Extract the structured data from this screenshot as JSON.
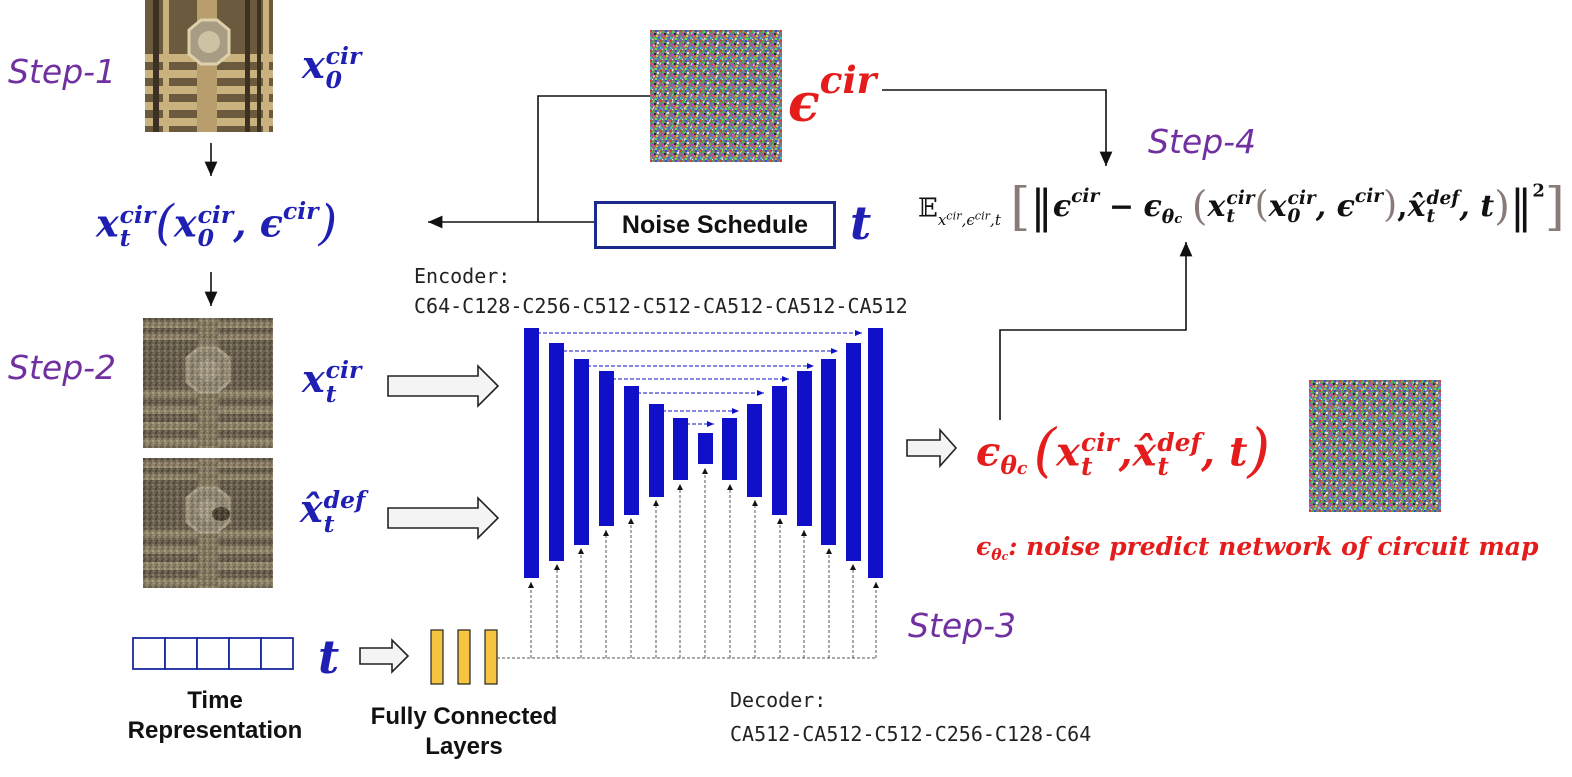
{
  "steps": {
    "step1": "Step-1",
    "step2": "Step-2",
    "step3": "Step-3",
    "step4": "Step-4"
  },
  "symbols": {
    "x": "x",
    "x_hat": "x̂",
    "eps": "ϵ",
    "t": "t",
    "cir": "cir",
    "def": "def",
    "zero": "0",
    "theta_c": "θ",
    "c": "c",
    "comma": ",",
    "lparen": "(",
    "rparen": ")",
    "minus": "−",
    "square": "2",
    "expect": "𝔼",
    "norm": "‖"
  },
  "noise_schedule": {
    "label": "Noise Schedule"
  },
  "encoder": {
    "title": "Encoder:",
    "layers": "C64-C128-C256-C512-C512-CA512-CA512-CA512"
  },
  "decoder": {
    "title": "Decoder:",
    "layers": "CA512-CA512-C512-C256-C128-C64"
  },
  "time_representation": {
    "label_line1": "Time",
    "label_line2": "Representation"
  },
  "fully_connected": {
    "label_line1": "Fully Connected",
    "label_line2": "Layers"
  },
  "legend": {
    "text": ": noise predict network of circuit map"
  },
  "colors": {
    "blue": "#1f1fb4",
    "red": "#e51c1c",
    "purple": "#7030a0",
    "unet_blue": "#1010c8",
    "fc_yellow": "#f5c542"
  }
}
